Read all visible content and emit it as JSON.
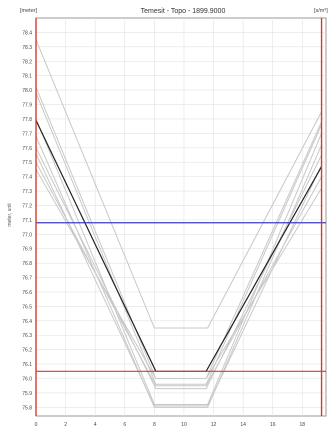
{
  "chart_data": {
    "type": "line",
    "title": "Temesit - Topo - 1899.9000",
    "unit_left": "[meter]",
    "unit_right": "[s/m³]",
    "ylabel": "meter, unit",
    "xlim": [
      0,
      19.6
    ],
    "ylim": [
      75.74,
      78.5
    ],
    "x_ticks": [
      0,
      2,
      4,
      6,
      8,
      10,
      12,
      14,
      16,
      18
    ],
    "x_tick_labels": [
      "0",
      "2",
      "4",
      "6",
      "8",
      "10",
      "12",
      "14",
      "16",
      "18"
    ],
    "y_ticks": [
      78.4,
      78.3,
      78.2,
      78.1,
      78.0,
      77.9,
      77.8,
      77.7,
      77.6,
      77.5,
      77.4,
      77.3,
      77.2,
      77.1,
      77.0,
      76.9,
      76.8,
      76.7,
      76.6,
      76.5,
      76.4,
      76.3,
      76.2,
      76.1,
      76.0,
      75.9,
      75.8
    ],
    "y_tick_labels": [
      "78.4",
      "78.3",
      "78.2",
      "78.1",
      "78.0",
      "77.9",
      "77.8",
      "77.7",
      "77.6",
      "77.5",
      "77.4",
      "77.3",
      "77.2",
      "77.1",
      "77.0",
      "76.9",
      "76.8",
      "76.7",
      "76.6",
      "76.5",
      "76.4",
      "76.3",
      "76.2",
      "76.1",
      "76.0",
      "75.9",
      "75.8"
    ],
    "grid": true,
    "vertical_markers": [
      0,
      19.3
    ],
    "vertical_marker_color": "#d83a2a",
    "water_level": 77.08,
    "water_level_color": "#3c3cc8",
    "low_level": 76.05,
    "low_level_color": "#d83a2a",
    "main_series_color": "#222222",
    "other_series_color": "#c8c8c8",
    "main_series": {
      "x": [
        0,
        8.1,
        11.5,
        19.3
      ],
      "y": [
        77.79,
        76.05,
        76.05,
        77.47
      ]
    },
    "series": [
      {
        "x": [
          0,
          8.0,
          11.6,
          19.3
        ],
        "y": [
          78.35,
          76.35,
          76.35,
          77.85
        ]
      },
      {
        "x": [
          0,
          8.1,
          11.5,
          19.3
        ],
        "y": [
          78.02,
          76.0,
          76.0,
          77.78
        ]
      },
      {
        "x": [
          0,
          8.1,
          11.5,
          19.3
        ],
        "y": [
          77.98,
          75.96,
          75.96,
          77.76
        ]
      },
      {
        "x": [
          0,
          8.0,
          11.6,
          19.3
        ],
        "y": [
          77.8,
          75.82,
          75.82,
          77.7
        ]
      },
      {
        "x": [
          0,
          8.0,
          11.6,
          19.3
        ],
        "y": [
          77.68,
          75.8,
          75.8,
          77.62
        ]
      },
      {
        "x": [
          0,
          8.1,
          11.5,
          19.3
        ],
        "y": [
          77.6,
          75.93,
          75.93,
          77.55
        ]
      },
      {
        "x": [
          0,
          8.0,
          11.6,
          19.3
        ],
        "y": [
          77.56,
          75.81,
          75.81,
          77.48
        ]
      },
      {
        "x": [
          0,
          8.1,
          11.5,
          19.3
        ],
        "y": [
          77.5,
          75.95,
          75.95,
          77.4
        ]
      },
      {
        "x": [
          0,
          8.1,
          11.5,
          19.3
        ],
        "y": [
          77.45,
          76.0,
          76.0,
          77.32
        ]
      }
    ]
  }
}
